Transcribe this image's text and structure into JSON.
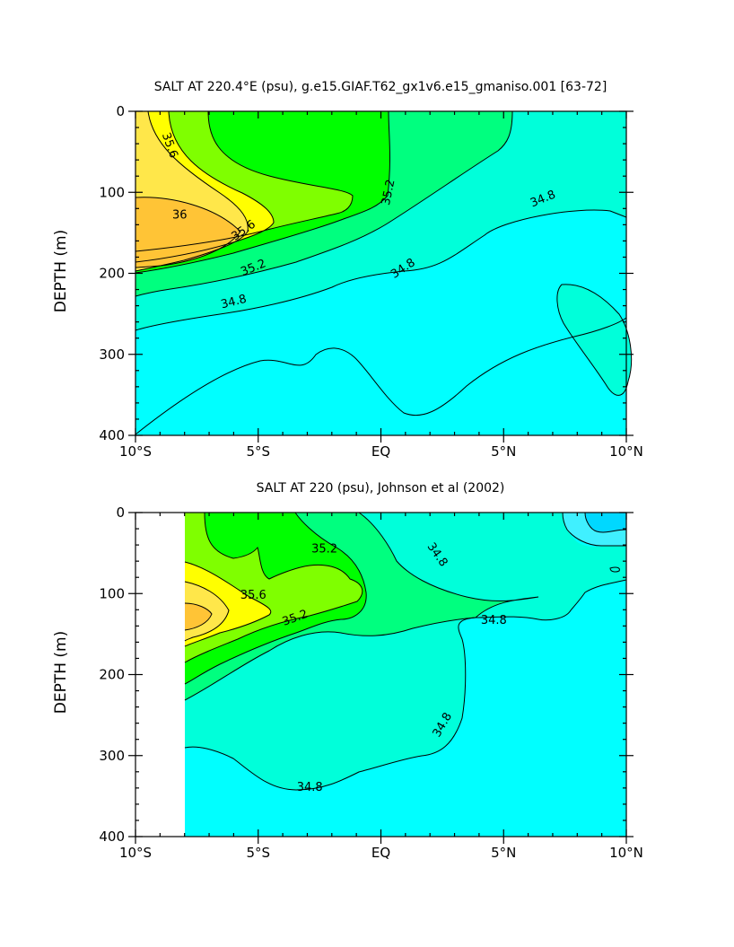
{
  "chart_data": [
    {
      "type": "contour",
      "title": "SALT AT 220.4°E (psu), g.e15.GIAF.T62_gx1v6.e15_gmaniso.001 [63-72]",
      "xlabel": "",
      "ylabel": "DEPTH (m)",
      "xlim": [
        -10,
        10
      ],
      "ylim": [
        400,
        0
      ],
      "x_ticks": [
        {
          "v": -10,
          "label": "10°S"
        },
        {
          "v": -5,
          "label": "5°S"
        },
        {
          "v": 0,
          "label": "EQ"
        },
        {
          "v": 5,
          "label": "5°N"
        },
        {
          "v": 10,
          "label": "10°N"
        }
      ],
      "y_ticks": [
        {
          "v": 0,
          "label": "0"
        },
        {
          "v": 100,
          "label": "100"
        },
        {
          "v": 200,
          "label": "200"
        },
        {
          "v": 300,
          "label": "300"
        },
        {
          "v": 400,
          "label": "400"
        }
      ],
      "data_xmin": -10,
      "background": "#00ffff",
      "contour_labels": [
        {
          "text": "35.6",
          "x": -8.6,
          "y": 42,
          "rot": 70
        },
        {
          "text": "36",
          "x": -8.2,
          "y": 128,
          "rot": 0
        },
        {
          "text": "35.6",
          "x": -5.6,
          "y": 147,
          "rot": -35
        },
        {
          "text": "35.2",
          "x": -5.2,
          "y": 193,
          "rot": -22
        },
        {
          "text": "34.8",
          "x": -6.0,
          "y": 235,
          "rot": -14
        },
        {
          "text": "35.2",
          "x": 0.3,
          "y": 100,
          "rot": -78
        },
        {
          "text": "34.8",
          "x": 0.9,
          "y": 194,
          "rot": -33
        },
        {
          "text": "34.8",
          "x": 6.6,
          "y": 108,
          "rot": -22
        }
      ]
    },
    {
      "type": "contour",
      "title": "SALT AT 220 (psu), Johnson et al (2002)",
      "xlabel": "",
      "ylabel": "DEPTH (m)",
      "xlim": [
        -10,
        10
      ],
      "ylim": [
        400,
        0
      ],
      "x_ticks": [
        {
          "v": -10,
          "label": "10°S"
        },
        {
          "v": -5,
          "label": "5°S"
        },
        {
          "v": 0,
          "label": "EQ"
        },
        {
          "v": 5,
          "label": "5°N"
        },
        {
          "v": 10,
          "label": "10°N"
        }
      ],
      "y_ticks": [
        {
          "v": 0,
          "label": "0"
        },
        {
          "v": 100,
          "label": "100"
        },
        {
          "v": 200,
          "label": "200"
        },
        {
          "v": 300,
          "label": "300"
        },
        {
          "v": 400,
          "label": "400"
        }
      ],
      "data_xmin": -8,
      "background": "#00ffdc",
      "contour_labels": [
        {
          "text": "35.2",
          "x": -2.3,
          "y": 45,
          "rot": 0
        },
        {
          "text": "35.6",
          "x": -5.2,
          "y": 102,
          "rot": 0
        },
        {
          "text": "35.2",
          "x": -3.5,
          "y": 130,
          "rot": -20
        },
        {
          "text": "34.8",
          "x": 2.3,
          "y": 52,
          "rot": 55
        },
        {
          "text": "34.8",
          "x": 4.6,
          "y": 133,
          "rot": 0
        },
        {
          "text": "34.8",
          "x": 2.5,
          "y": 262,
          "rot": -60
        },
        {
          "text": "34.8",
          "x": -2.9,
          "y": 339,
          "rot": 0
        }
      ]
    }
  ]
}
